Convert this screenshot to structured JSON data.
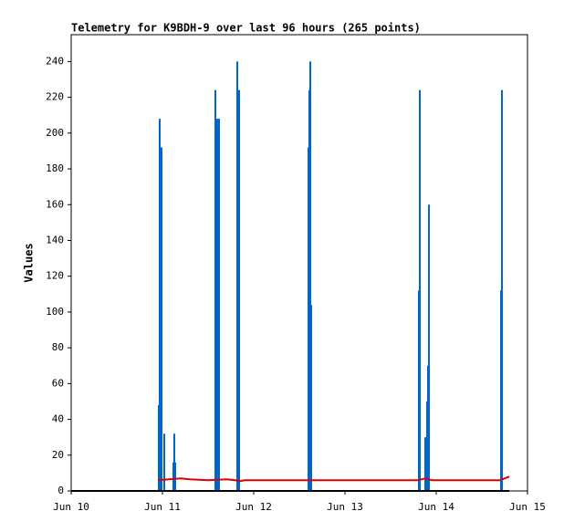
{
  "chart_data": {
    "type": "line",
    "title": "Telemetry for K9BDH-9 over last 96 hours (265 points)",
    "y_label": "Values",
    "xlim": [
      10,
      15
    ],
    "xticks": [
      {
        "value": 10,
        "label": "Jun 10"
      },
      {
        "value": 11,
        "label": "Jun 11"
      },
      {
        "value": 12,
        "label": "Jun 12"
      },
      {
        "value": 13,
        "label": "Jun 13"
      },
      {
        "value": 14,
        "label": "Jun 14"
      },
      {
        "value": 15,
        "label": "Jun 15"
      }
    ],
    "ylim": [
      0,
      255
    ],
    "yticks": [
      0,
      20,
      40,
      60,
      80,
      100,
      120,
      140,
      160,
      180,
      200,
      220,
      240
    ],
    "grid": false,
    "series": [
      {
        "color": "#0066cc",
        "style": "spike",
        "x": [
          10.96,
          10.97,
          10.99,
          11.02,
          11.12,
          11.13,
          11.14,
          11.58,
          11.6,
          11.62,
          11.82,
          11.84,
          12.6,
          12.61,
          12.62,
          12.63,
          13.81,
          13.82,
          13.88,
          13.9,
          13.91,
          13.92,
          14.71,
          14.72
        ],
        "values": [
          48,
          208,
          192,
          32,
          16,
          32,
          16,
          224,
          208,
          208,
          240,
          224,
          192,
          224,
          240,
          104,
          112,
          224,
          30,
          50,
          70,
          160,
          112,
          224
        ]
      },
      {
        "color": "#dd0000",
        "style": "line",
        "x": [
          10.95,
          11.2,
          11.3,
          11.5,
          11.7,
          11.8,
          11.85,
          11.9,
          12.5,
          13.8,
          13.88,
          13.95,
          14.7,
          14.8
        ],
        "values": [
          6,
          7,
          6.5,
          6,
          6.5,
          6,
          5.5,
          6,
          6,
          6,
          7,
          6,
          6,
          8
        ]
      },
      {
        "color": "#000000",
        "style": "line",
        "x": [
          10,
          14.8
        ],
        "values": [
          0,
          0
        ]
      }
    ]
  }
}
